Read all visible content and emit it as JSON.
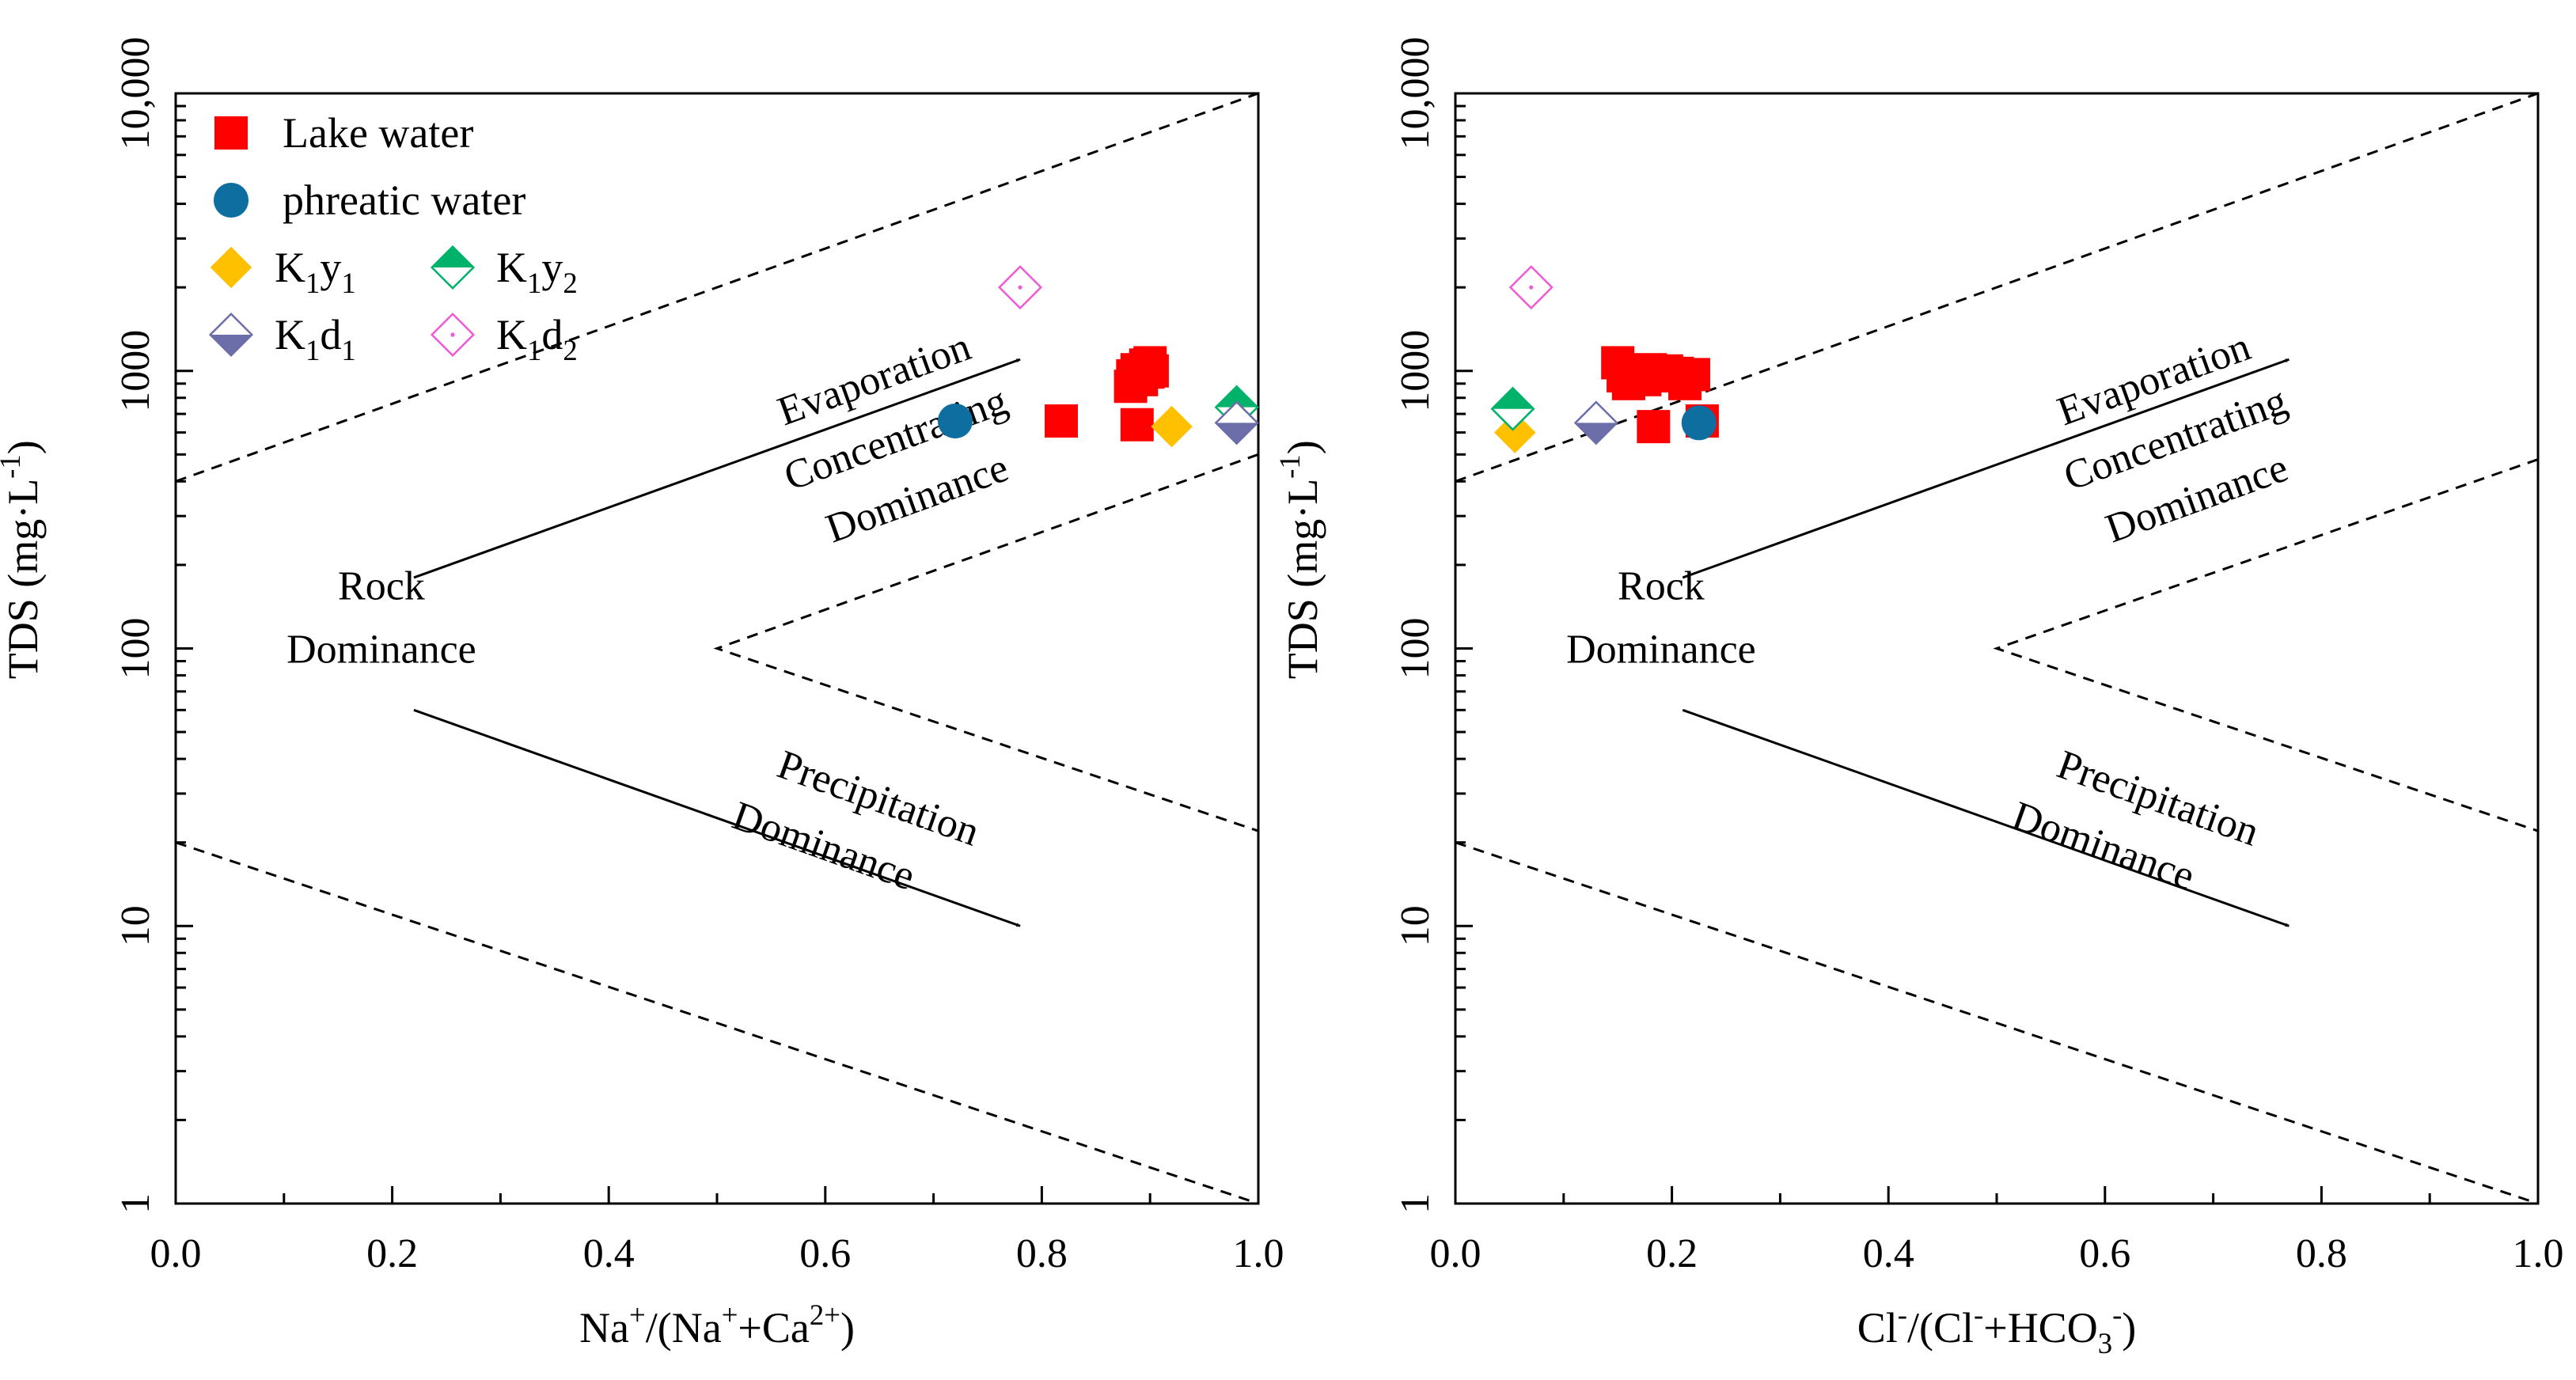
{
  "chart_data": [
    {
      "type": "scatter",
      "panel": "left",
      "title": "",
      "xlabel": "Na⁺/(Na⁺+Ca²⁺)",
      "ylabel": "TDS (mg·L⁻¹)",
      "xlim": [
        0.0,
        1.0
      ],
      "ylim": [
        1,
        10000
      ],
      "y_scale": "log",
      "x_ticks": [
        "0.0",
        "0.2",
        "0.4",
        "0.6",
        "0.8",
        "1.0"
      ],
      "y_ticks": [
        "1",
        "10",
        "100",
        "1000",
        "10,000"
      ],
      "legend_position": "top-left",
      "legend": {
        "lake": "Lake water",
        "phreatic": "phreatic water",
        "k1y1": "K₁y₁",
        "k1y2": "K₁y₂",
        "k1d1": "K₁d₁",
        "k1d2": "K₁d₂"
      },
      "boundaries": [
        {
          "name": "upper",
          "points": [
            [
              0.0,
              400
            ],
            [
              1.0,
              10000
            ]
          ]
        },
        {
          "name": "middle",
          "points": [
            [
              1.0,
              500
            ],
            [
              0.5,
              100
            ],
            [
              1.0,
              22
            ]
          ]
        },
        {
          "name": "lower",
          "points": [
            [
              0.0,
              20
            ],
            [
              1.0,
              1
            ]
          ]
        }
      ],
      "arrows": [
        {
          "name": "evaporation",
          "from": [
            0.22,
            180
          ],
          "to": [
            0.78,
            1100
          ]
        },
        {
          "name": "precipitation",
          "from": [
            0.22,
            60
          ],
          "to": [
            0.78,
            10
          ]
        }
      ],
      "regions": {
        "evaporation": [
          "Evaporation",
          "Concentrating",
          "Dominance"
        ],
        "rock": [
          "Rock",
          "Dominance"
        ],
        "precipitation": [
          "Precipitation",
          "Dominance"
        ]
      },
      "series": [
        {
          "name": "Lake water",
          "marker": "square",
          "points": [
            [
              0.818,
              660
            ],
            [
              0.882,
              880
            ],
            [
              0.884,
              960
            ],
            [
              0.888,
              1010
            ],
            [
              0.892,
              930
            ],
            [
              0.896,
              1050
            ],
            [
              0.898,
              990
            ],
            [
              0.9,
              1070
            ],
            [
              0.902,
              1000
            ],
            [
              0.888,
              640
            ]
          ]
        },
        {
          "name": "phreatic water",
          "marker": "circle",
          "points": [
            [
              0.72,
              660
            ]
          ]
        },
        {
          "name": "K₁y₁",
          "marker": "diamond",
          "points": [
            [
              0.92,
              630
            ]
          ]
        },
        {
          "name": "K₁y₂",
          "marker": "diamond-half-top",
          "points": [
            [
              0.98,
              740
            ]
          ]
        },
        {
          "name": "K₁d₁",
          "marker": "diamond-half-bottom",
          "points": [
            [
              0.98,
              650
            ]
          ]
        },
        {
          "name": "K₁d₂",
          "marker": "diamond-open-dot",
          "points": [
            [
              0.78,
              2000
            ]
          ]
        }
      ]
    },
    {
      "type": "scatter",
      "panel": "right",
      "title": "",
      "xlabel": "Cl⁻/(Cl⁻+HCO₃⁻)",
      "ylabel": "TDS (mg·L⁻¹)",
      "xlim": [
        0.0,
        1.0
      ],
      "ylim": [
        1,
        10000
      ],
      "y_scale": "log",
      "x_ticks": [
        "0.0",
        "0.2",
        "0.4",
        "0.6",
        "0.8",
        "1.0"
      ],
      "y_ticks": [
        "1",
        "10",
        "100",
        "1000",
        "10,000"
      ],
      "boundaries": [
        {
          "name": "upper",
          "points": [
            [
              0.0,
              400
            ],
            [
              1.0,
              10000
            ]
          ]
        },
        {
          "name": "middle",
          "points": [
            [
              1.0,
              480
            ],
            [
              0.5,
              100
            ],
            [
              1.0,
              22
            ]
          ]
        },
        {
          "name": "lower",
          "points": [
            [
              0.0,
              20
            ],
            [
              1.0,
              1
            ]
          ]
        }
      ],
      "arrows": [
        {
          "name": "evaporation",
          "from": [
            0.21,
            180
          ],
          "to": [
            0.77,
            1100
          ]
        },
        {
          "name": "precipitation",
          "from": [
            0.21,
            60
          ],
          "to": [
            0.77,
            10
          ]
        }
      ],
      "regions": {
        "evaporation": [
          "Evaporation",
          "Concentrating",
          "Dominance"
        ],
        "rock": [
          "Rock",
          "Dominance"
        ],
        "precipitation": [
          "Precipitation",
          "Dominance"
        ]
      },
      "series": [
        {
          "name": "Lake water",
          "marker": "square",
          "points": [
            [
              0.15,
              1070
            ],
            [
              0.155,
              960
            ],
            [
              0.16,
              900
            ],
            [
              0.168,
              1000
            ],
            [
              0.175,
              930
            ],
            [
              0.18,
              1010
            ],
            [
              0.19,
              960
            ],
            [
              0.195,
              1000
            ],
            [
              0.205,
              980
            ],
            [
              0.212,
              900
            ],
            [
              0.22,
              970
            ],
            [
              0.228,
              660
            ],
            [
              0.183,
              630
            ]
          ]
        },
        {
          "name": "phreatic water",
          "marker": "circle",
          "points": [
            [
              0.225,
              650
            ]
          ]
        },
        {
          "name": "K₁y₁",
          "marker": "diamond",
          "points": [
            [
              0.055,
              600
            ]
          ]
        },
        {
          "name": "K₁y₂",
          "marker": "diamond-half-top",
          "points": [
            [
              0.053,
              730
            ]
          ]
        },
        {
          "name": "K₁d₁",
          "marker": "diamond-half-bottom",
          "points": [
            [
              0.13,
              650
            ]
          ]
        },
        {
          "name": "K₁d₂",
          "marker": "diamond-open-dot",
          "points": [
            [
              0.07,
              2000
            ]
          ]
        }
      ]
    }
  ]
}
